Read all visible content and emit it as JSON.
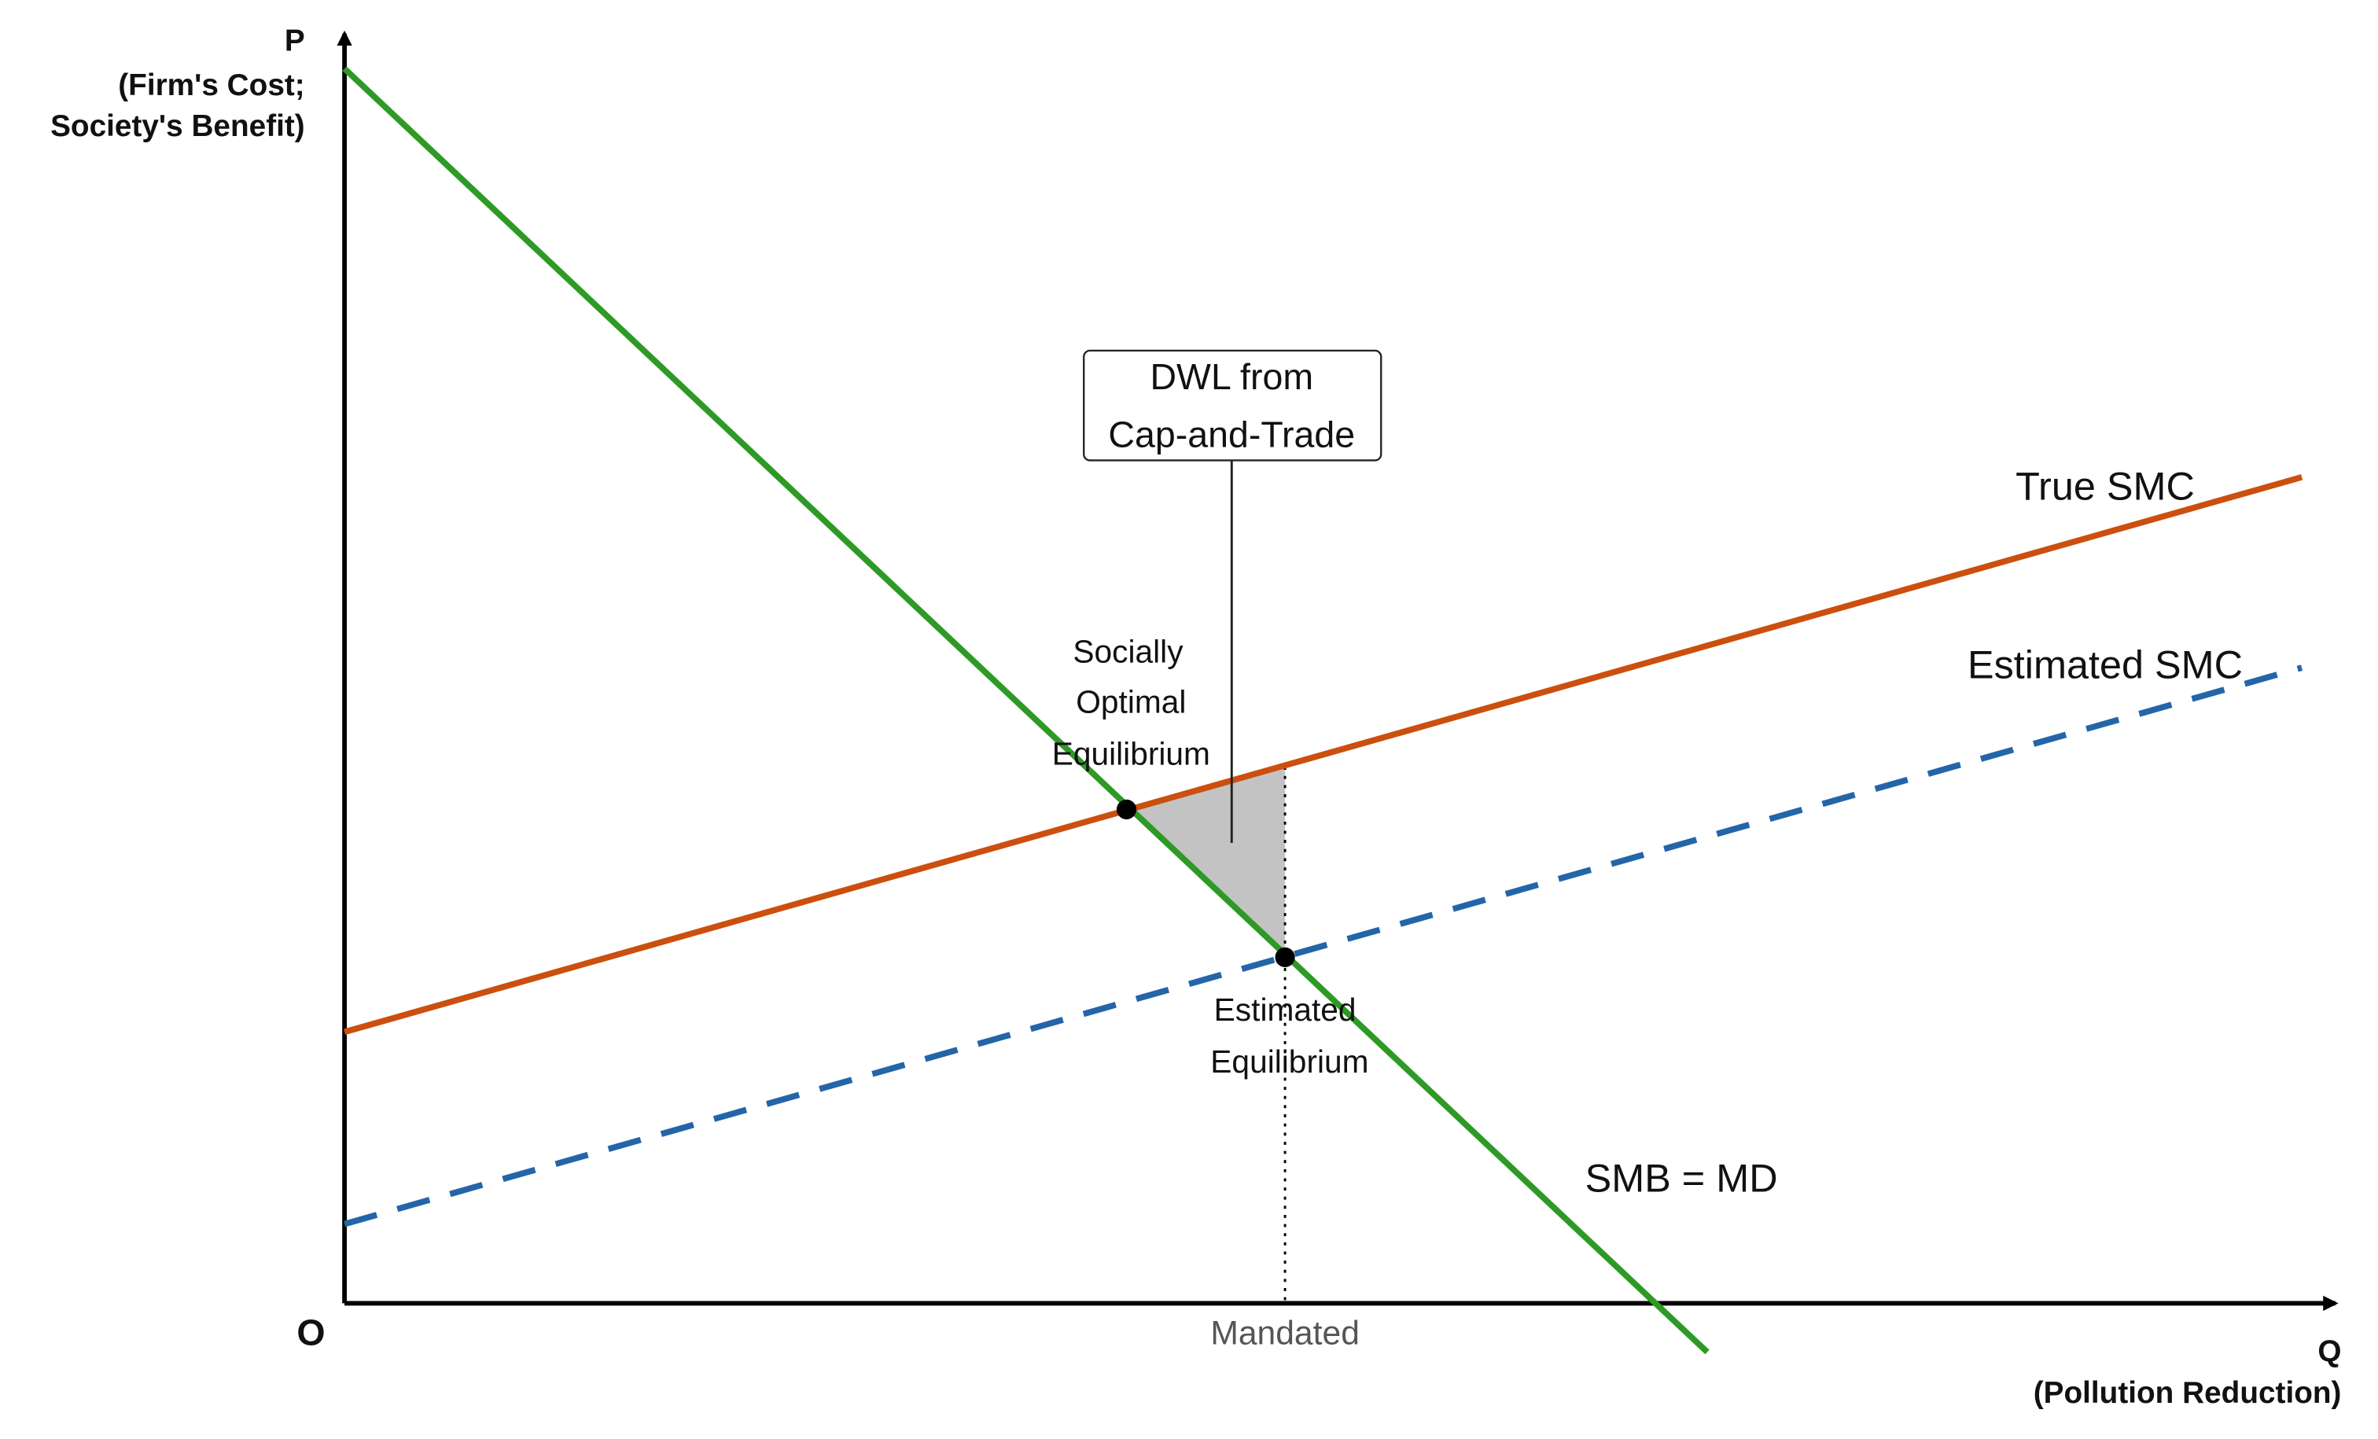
{
  "axes": {
    "y_label": [
      "P",
      "(Firm's Cost;",
      "Society's Benefit)"
    ],
    "x_label": [
      "Q",
      "(Pollution Reduction)"
    ],
    "origin": "O",
    "x_marker": "Mandated"
  },
  "curves": {
    "true_smc": "True SMC",
    "estimated_smc": "Estimated SMC",
    "smb": "SMB = MD"
  },
  "points": {
    "social_optimum": [
      "Socially",
      "Optimal",
      "Equilibrium"
    ],
    "estimated": [
      "Estimated",
      "Equilibrium"
    ]
  },
  "annotation": [
    "DWL from",
    "Cap-and-Trade"
  ]
}
